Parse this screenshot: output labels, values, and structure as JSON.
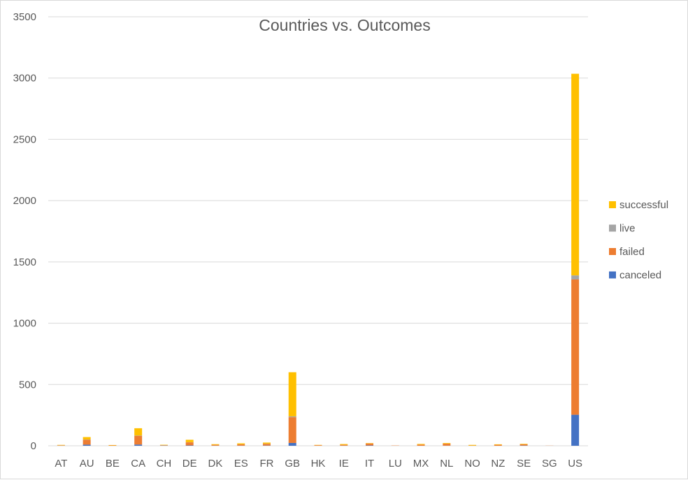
{
  "chart_data": {
    "type": "bar",
    "stacked": true,
    "title": "Countries vs. Outcomes",
    "xlabel": "",
    "ylabel": "",
    "ylim": [
      0,
      3500
    ],
    "yticks": [
      0,
      500,
      1000,
      1500,
      2000,
      2500,
      3000,
      3500
    ],
    "grid": true,
    "legend_position": "right",
    "categories": [
      "AT",
      "AU",
      "BE",
      "CA",
      "CH",
      "DE",
      "DK",
      "ES",
      "FR",
      "GB",
      "HK",
      "IE",
      "IT",
      "LU",
      "MX",
      "NL",
      "NO",
      "NZ",
      "SE",
      "SG",
      "US"
    ],
    "series": [
      {
        "name": "canceled",
        "color": "#4472c4",
        "values": [
          1,
          9,
          0,
          10,
          2,
          3,
          1,
          1,
          2,
          23,
          0,
          1,
          3,
          0,
          0,
          1,
          0,
          0,
          2,
          0,
          253
        ]
      },
      {
        "name": "failed",
        "color": "#ed7d31",
        "values": [
          3,
          40,
          3,
          70,
          3,
          25,
          7,
          11,
          14,
          210,
          5,
          7,
          16,
          2,
          10,
          16,
          2,
          8,
          10,
          1,
          1104
        ]
      },
      {
        "name": "live",
        "color": "#a5a5a5",
        "values": [
          0,
          2,
          0,
          3,
          0,
          1,
          0,
          0,
          1,
          7,
          0,
          0,
          0,
          0,
          0,
          0,
          0,
          0,
          0,
          0,
          33
        ]
      },
      {
        "name": "successful",
        "color": "#ffc000",
        "values": [
          3,
          20,
          3,
          60,
          3,
          20,
          5,
          8,
          9,
          360,
          2,
          6,
          3,
          0,
          5,
          5,
          5,
          4,
          4,
          0,
          1645
        ]
      }
    ]
  }
}
